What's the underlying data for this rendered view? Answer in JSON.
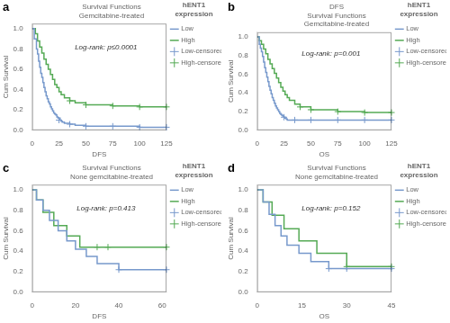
{
  "chart_data": [
    {
      "type": "line",
      "panel_label": "a",
      "title": [
        "Survival Functions",
        "Gemcitabine-treated"
      ],
      "xlabel": "DFS",
      "ylabel": "Cum Survival",
      "annotation": "Log-rank: p≤0.0001",
      "legend_title": [
        "hENT1",
        "expression"
      ],
      "legend": "right",
      "grid": false,
      "xlim": [
        0,
        125
      ],
      "ylim": [
        0.0,
        1.05
      ],
      "xticks": [
        0,
        25,
        50,
        75,
        100,
        125
      ],
      "yticks": [
        {
          "value": 0.0,
          "label": "0.0"
        },
        0.2,
        0.4,
        0.6,
        0.8,
        {
          "value": 1.0,
          "label": "1.0"
        }
      ],
      "series": [
        {
          "name": "Low",
          "type": "line",
          "line_style": "steps",
          "color": "#7799CC",
          "x": [
            0,
            2,
            4,
            5,
            6,
            7,
            8,
            9,
            10,
            11,
            12,
            13,
            14,
            15,
            16,
            17,
            18,
            19,
            20,
            21,
            22,
            23,
            24,
            25,
            26,
            27,
            28,
            30,
            35,
            40,
            50,
            100,
            125
          ],
          "values": [
            1.0,
            0.9,
            0.8,
            0.75,
            0.68,
            0.62,
            0.56,
            0.52,
            0.47,
            0.42,
            0.38,
            0.34,
            0.31,
            0.28,
            0.26,
            0.23,
            0.21,
            0.19,
            0.17,
            0.16,
            0.15,
            0.13,
            0.12,
            0.12,
            0.1,
            0.09,
            0.08,
            0.07,
            0.06,
            0.05,
            0.04,
            0.03,
            0.03
          ]
        },
        {
          "name": "High",
          "type": "line",
          "line_style": "steps",
          "color": "#55AA55",
          "x": [
            0,
            3,
            5,
            7,
            9,
            11,
            13,
            15,
            17,
            19,
            21,
            23,
            25,
            27,
            30,
            35,
            40,
            50,
            75,
            100,
            125
          ],
          "values": [
            1.0,
            0.95,
            0.88,
            0.82,
            0.76,
            0.7,
            0.65,
            0.6,
            0.55,
            0.5,
            0.45,
            0.42,
            0.38,
            0.35,
            0.32,
            0.29,
            0.27,
            0.25,
            0.24,
            0.23,
            0.23
          ]
        },
        {
          "name": "Low-censored",
          "type": "scatter",
          "marker": "+",
          "color": "#7799CC",
          "x": [
            25,
            35,
            50,
            75,
            100,
            125
          ],
          "values": [
            0.1,
            0.06,
            0.04,
            0.04,
            0.03,
            0.03
          ]
        },
        {
          "name": "High-censored",
          "type": "scatter",
          "marker": "+",
          "color": "#55AA55",
          "x": [
            35,
            50,
            75,
            100,
            125
          ],
          "values": [
            0.29,
            0.25,
            0.24,
            0.23,
            0.23
          ]
        }
      ]
    },
    {
      "type": "line",
      "panel_label": "b",
      "title": [
        "DFS",
        "Survival Functions",
        "Gemcitabine-treated"
      ],
      "xlabel": "OS",
      "ylabel": "Cum Survival",
      "annotation": "Log-rank: p=0.001",
      "legend_title": [
        "hENT1",
        "expression"
      ],
      "legend": "right",
      "grid": false,
      "xlim": [
        0,
        125
      ],
      "ylim": [
        0.0,
        1.05
      ],
      "xticks": [
        0,
        25,
        50,
        75,
        100,
        125
      ],
      "yticks": [
        {
          "value": 0.0,
          "label": "0.0"
        },
        0.2,
        0.4,
        0.6,
        0.8,
        {
          "value": 1.0,
          "label": "1.0"
        }
      ],
      "series": [
        {
          "name": "Low",
          "type": "line",
          "line_style": "steps",
          "color": "#7799CC",
          "x": [
            0,
            2,
            3,
            4,
            5,
            6,
            7,
            8,
            9,
            10,
            11,
            12,
            13,
            14,
            15,
            16,
            17,
            18,
            19,
            20,
            21,
            22,
            23,
            24,
            25,
            26,
            27,
            28,
            30,
            35,
            40,
            50,
            100,
            125
          ],
          "values": [
            1.0,
            0.92,
            0.88,
            0.84,
            0.79,
            0.73,
            0.67,
            0.62,
            0.57,
            0.52,
            0.47,
            0.43,
            0.39,
            0.35,
            0.32,
            0.29,
            0.26,
            0.24,
            0.22,
            0.2,
            0.18,
            0.17,
            0.16,
            0.15,
            0.14,
            0.13,
            0.12,
            0.11,
            0.11,
            0.11,
            0.11,
            0.11,
            0.11,
            0.11
          ]
        },
        {
          "name": "High",
          "type": "line",
          "line_style": "steps",
          "color": "#55AA55",
          "x": [
            0,
            2,
            4,
            6,
            8,
            10,
            12,
            14,
            16,
            18,
            20,
            22,
            24,
            26,
            28,
            30,
            35,
            40,
            50,
            75,
            100,
            125
          ],
          "values": [
            1.0,
            0.96,
            0.92,
            0.87,
            0.82,
            0.76,
            0.71,
            0.66,
            0.61,
            0.56,
            0.51,
            0.46,
            0.42,
            0.38,
            0.35,
            0.32,
            0.28,
            0.25,
            0.22,
            0.2,
            0.19,
            0.19
          ]
        },
        {
          "name": "Low-censored",
          "type": "scatter",
          "marker": "+",
          "color": "#7799CC",
          "x": [
            25,
            35,
            50,
            75,
            100,
            125
          ],
          "values": [
            0.14,
            0.11,
            0.11,
            0.11,
            0.11,
            0.11
          ]
        },
        {
          "name": "High-censored",
          "type": "scatter",
          "marker": "+",
          "color": "#55AA55",
          "x": [
            40,
            50,
            75,
            100,
            125
          ],
          "values": [
            0.25,
            0.22,
            0.2,
            0.19,
            0.19
          ]
        }
      ]
    },
    {
      "type": "line",
      "panel_label": "c",
      "title": [
        "Survival Functions",
        "None gemcitabine-treated"
      ],
      "xlabel": "DFS",
      "ylabel": "Cum Survival",
      "annotation": "Log-rank: p=0.413",
      "legend_title": [
        "hENT1",
        "expression"
      ],
      "legend": "right",
      "grid": false,
      "xlim": [
        0,
        62
      ],
      "ylim": [
        0.0,
        1.05
      ],
      "xticks": [
        0,
        20,
        40,
        60
      ],
      "yticks": [
        {
          "value": 0.0,
          "label": "0.0"
        },
        0.2,
        0.4,
        0.6,
        0.8,
        {
          "value": 1.0,
          "label": "1.0"
        }
      ],
      "series": [
        {
          "name": "Low",
          "type": "line",
          "line_style": "steps",
          "color": "#7799CC",
          "x": [
            0,
            2,
            5,
            8,
            12,
            16,
            20,
            25,
            30,
            40,
            62
          ],
          "values": [
            1.0,
            0.9,
            0.8,
            0.7,
            0.6,
            0.5,
            0.42,
            0.35,
            0.28,
            0.22,
            0.22
          ]
        },
        {
          "name": "High",
          "type": "line",
          "line_style": "steps",
          "color": "#55AA55",
          "x": [
            0,
            2,
            5,
            10,
            16,
            22,
            30,
            35,
            62
          ],
          "values": [
            1.0,
            0.9,
            0.78,
            0.65,
            0.55,
            0.44,
            0.44,
            0.44,
            0.44
          ]
        },
        {
          "name": "Low-censored",
          "type": "scatter",
          "marker": "+",
          "color": "#7799CC",
          "x": [
            40,
            62
          ],
          "values": [
            0.22,
            0.22
          ]
        },
        {
          "name": "High-censored",
          "type": "scatter",
          "marker": "+",
          "color": "#55AA55",
          "x": [
            30,
            35,
            62
          ],
          "values": [
            0.44,
            0.44,
            0.44
          ]
        }
      ]
    },
    {
      "type": "line",
      "panel_label": "d",
      "title": [
        "Survival Functions",
        "None gemcitabine-treated"
      ],
      "xlabel": "OS",
      "ylabel": "Cum Survival",
      "annotation": "Log-rank: p=0.152",
      "legend_title": [
        "hENT1",
        "expression"
      ],
      "legend": "right",
      "grid": false,
      "xlim": [
        0,
        45
      ],
      "ylim": [
        0.0,
        1.05
      ],
      "xticks": [
        0,
        15,
        30,
        45
      ],
      "yticks": [
        {
          "value": 0.0,
          "label": "0.0"
        },
        0.2,
        0.4,
        0.6,
        0.8,
        {
          "value": 1.0,
          "label": "1.0"
        }
      ],
      "series": [
        {
          "name": "Low",
          "type": "line",
          "line_style": "steps",
          "color": "#7799CC",
          "x": [
            0,
            2,
            4,
            6,
            8,
            10,
            14,
            18,
            24,
            30,
            45
          ],
          "values": [
            1.0,
            0.88,
            0.76,
            0.65,
            0.55,
            0.46,
            0.38,
            0.3,
            0.23,
            0.23,
            0.23
          ]
        },
        {
          "name": "High",
          "type": "line",
          "line_style": "steps",
          "color": "#55AA55",
          "x": [
            0,
            2,
            5,
            9,
            14,
            20,
            30,
            45
          ],
          "values": [
            1.0,
            0.88,
            0.75,
            0.62,
            0.5,
            0.38,
            0.25,
            0.25
          ]
        },
        {
          "name": "Low-censored",
          "type": "scatter",
          "marker": "+",
          "color": "#7799CC",
          "x": [
            24,
            30,
            45
          ],
          "values": [
            0.23,
            0.23,
            0.23
          ]
        },
        {
          "name": "High-censored",
          "type": "scatter",
          "marker": "+",
          "color": "#55AA55",
          "x": [
            30,
            45
          ],
          "values": [
            0.25,
            0.25
          ]
        }
      ]
    }
  ]
}
